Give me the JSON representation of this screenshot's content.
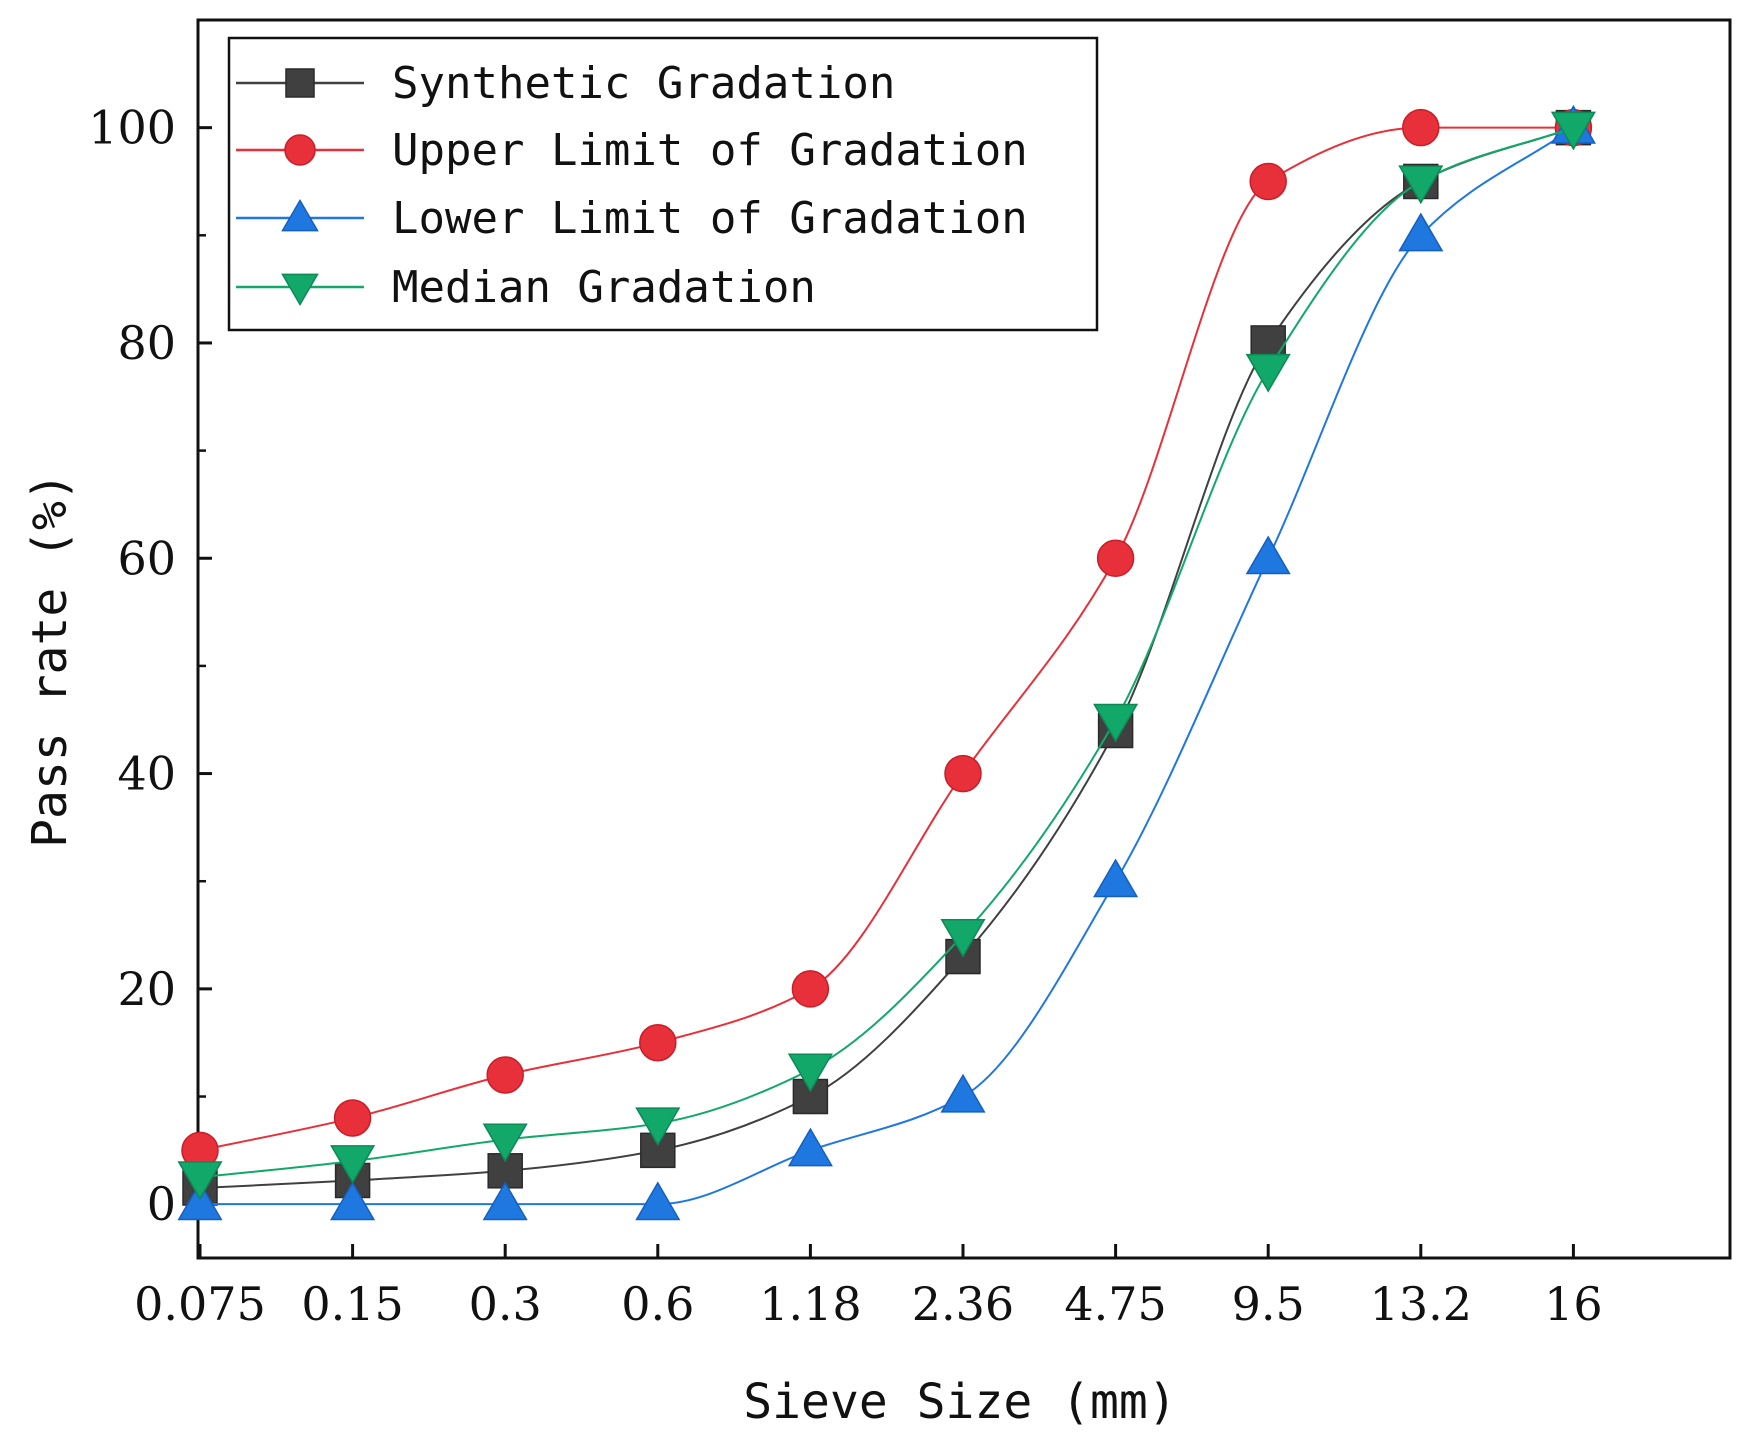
{
  "chart_data": {
    "type": "line",
    "title": "",
    "xlabel": "Sieve Size (mm)",
    "ylabel": "Pass rate (%)",
    "categories": [
      "0.075",
      "0.15",
      "0.3",
      "0.6",
      "1.18",
      "2.36",
      "4.75",
      "9.5",
      "13.2",
      "16"
    ],
    "ylim": [
      -5,
      110
    ],
    "yticks": [
      0,
      20,
      40,
      60,
      80,
      100
    ],
    "legend": "top-left",
    "grid": false,
    "series": [
      {
        "name": "Synthetic Gradation",
        "color": "#404040",
        "marker": "square",
        "values": [
          1.5,
          2.2,
          3.1,
          5,
          10,
          23,
          44,
          80,
          95,
          100
        ]
      },
      {
        "name": "Upper Limit of Gradation",
        "color": "#e8303a",
        "marker": "circle",
        "values": [
          5,
          8,
          12,
          15,
          20,
          40,
          60,
          95,
          100,
          100
        ]
      },
      {
        "name": "Lower Limit of Gradation",
        "color": "#1f77e0",
        "marker": "triangle-up",
        "values": [
          0,
          0,
          0,
          0,
          5,
          10,
          30,
          60,
          90,
          100
        ]
      },
      {
        "name": "Median Gradation",
        "color": "#12a86a",
        "marker": "triangle-down",
        "values": [
          2.5,
          4,
          6,
          7.5,
          12.5,
          25,
          45,
          77.5,
          95,
          100
        ]
      }
    ]
  }
}
